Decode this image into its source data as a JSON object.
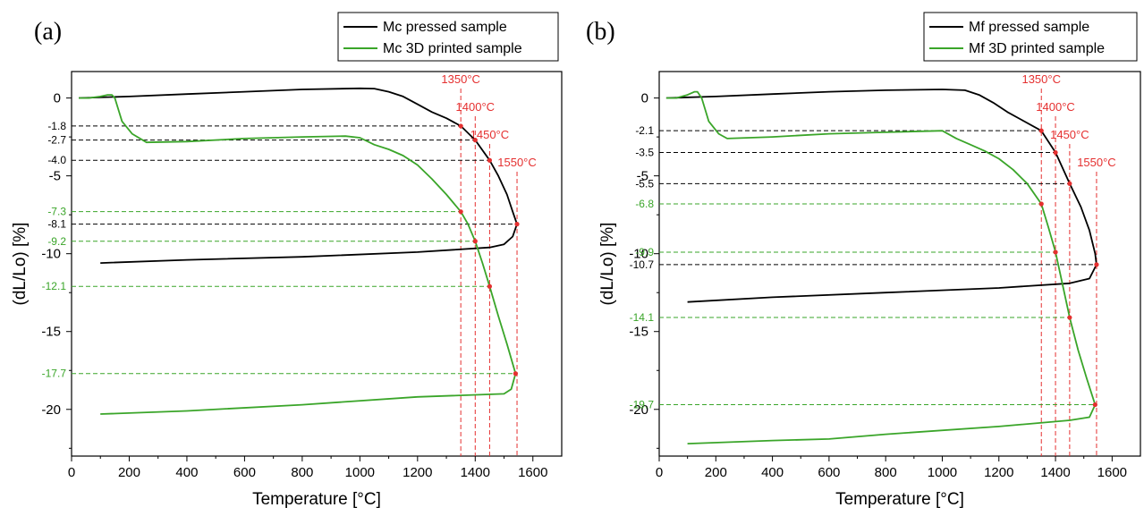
{
  "chart_data": [
    {
      "type": "line",
      "panel_label": "(a)",
      "xlabel": "Temperature [°C]",
      "ylabel": "(dL/Lo) [%]",
      "xlim": [
        0,
        1700
      ],
      "ylim": [
        -23,
        1.7
      ],
      "x_ticks": [
        0,
        200,
        400,
        600,
        800,
        1000,
        1200,
        1400,
        1600
      ],
      "y_ticks": [
        0,
        -5,
        -10,
        -15,
        -20
      ],
      "grid": false,
      "legend_position": "top-right",
      "colors": {
        "pressed": "#000000",
        "printed": "#3aa529",
        "marker": "#e53030"
      },
      "series": [
        {
          "name": "Mc pressed sample",
          "color": "#000000",
          "points": [
            [
              25,
              0
            ],
            [
              200,
              0.1
            ],
            [
              400,
              0.25
            ],
            [
              600,
              0.4
            ],
            [
              800,
              0.55
            ],
            [
              1000,
              0.62
            ],
            [
              1050,
              0.6
            ],
            [
              1100,
              0.4
            ],
            [
              1150,
              0.1
            ],
            [
              1200,
              -0.4
            ],
            [
              1250,
              -0.9
            ],
            [
              1300,
              -1.3
            ],
            [
              1350,
              -1.8
            ],
            [
              1400,
              -2.7
            ],
            [
              1450,
              -4.0
            ],
            [
              1480,
              -5.0
            ],
            [
              1510,
              -6.2
            ],
            [
              1530,
              -7.3
            ],
            [
              1545,
              -8.1
            ],
            [
              1530,
              -8.9
            ],
            [
              1500,
              -9.4
            ],
            [
              1450,
              -9.6
            ],
            [
              1200,
              -9.9
            ],
            [
              800,
              -10.2
            ],
            [
              400,
              -10.4
            ],
            [
              100,
              -10.6
            ]
          ]
        },
        {
          "name": "Mc 3D printed sample",
          "color": "#3aa529",
          "points": [
            [
              25,
              0
            ],
            [
              60,
              0
            ],
            [
              100,
              0.1
            ],
            [
              125,
              0.2
            ],
            [
              140,
              0.2
            ],
            [
              150,
              0
            ],
            [
              175,
              -1.5
            ],
            [
              210,
              -2.3
            ],
            [
              260,
              -2.85
            ],
            [
              400,
              -2.8
            ],
            [
              600,
              -2.6
            ],
            [
              800,
              -2.5
            ],
            [
              950,
              -2.45
            ],
            [
              1000,
              -2.55
            ],
            [
              1050,
              -3.0
            ],
            [
              1100,
              -3.3
            ],
            [
              1150,
              -3.7
            ],
            [
              1200,
              -4.3
            ],
            [
              1250,
              -5.2
            ],
            [
              1300,
              -6.2
            ],
            [
              1350,
              -7.3
            ],
            [
              1375,
              -8.1
            ],
            [
              1400,
              -9.2
            ],
            [
              1425,
              -10.6
            ],
            [
              1450,
              -12.1
            ],
            [
              1480,
              -14.0
            ],
            [
              1510,
              -15.8
            ],
            [
              1540,
              -17.7
            ],
            [
              1525,
              -18.7
            ],
            [
              1500,
              -19.0
            ],
            [
              1200,
              -19.2
            ],
            [
              800,
              -19.7
            ],
            [
              400,
              -20.1
            ],
            [
              100,
              -20.3
            ]
          ]
        }
      ],
      "temperature_markers": [
        {
          "label": "1350°C",
          "x": 1350
        },
        {
          "label": "1400°C",
          "x": 1400
        },
        {
          "label": "1450°C",
          "x": 1450
        },
        {
          "label": "1550°C",
          "x": 1545
        }
      ],
      "annotations": [
        {
          "label": "-1.8",
          "y": -1.8,
          "series": "Mc pressed sample",
          "x_end": 1350
        },
        {
          "label": "-2.7",
          "y": -2.7,
          "series": "Mc pressed sample",
          "x_end": 1400
        },
        {
          "label": "-4.0",
          "y": -4.0,
          "series": "Mc pressed sample",
          "x_end": 1450
        },
        {
          "label": "-8.1",
          "y": -8.1,
          "series": "Mc pressed sample",
          "x_end": 1545
        },
        {
          "label": "-7.3",
          "y": -7.3,
          "series": "Mc 3D printed sample",
          "x_end": 1350
        },
        {
          "label": "-9.2",
          "y": -9.2,
          "series": "Mc 3D printed sample",
          "x_end": 1400
        },
        {
          "label": "-12.1",
          "y": -12.1,
          "series": "Mc 3D printed sample",
          "x_end": 1450
        },
        {
          "label": "-17.7",
          "y": -17.7,
          "series": "Mc 3D printed sample",
          "x_end": 1540
        }
      ]
    },
    {
      "type": "line",
      "panel_label": "(b)",
      "xlabel": "Temperature [°C]",
      "ylabel": "(dL/Lo) [%]",
      "xlim": [
        0,
        1700
      ],
      "ylim": [
        -23,
        1.7
      ],
      "x_ticks": [
        0,
        200,
        400,
        600,
        800,
        1000,
        1200,
        1400,
        1600
      ],
      "y_ticks": [
        0,
        -5,
        -10,
        -15,
        -20
      ],
      "grid": false,
      "legend_position": "top-right",
      "colors": {
        "pressed": "#000000",
        "printed": "#3aa529",
        "marker": "#e53030"
      },
      "series": [
        {
          "name": "Mf pressed sample",
          "color": "#000000",
          "points": [
            [
              25,
              0
            ],
            [
              200,
              0.1
            ],
            [
              400,
              0.25
            ],
            [
              600,
              0.4
            ],
            [
              800,
              0.5
            ],
            [
              1000,
              0.55
            ],
            [
              1080,
              0.5
            ],
            [
              1130,
              0.2
            ],
            [
              1180,
              -0.3
            ],
            [
              1230,
              -0.9
            ],
            [
              1280,
              -1.4
            ],
            [
              1350,
              -2.1
            ],
            [
              1400,
              -3.5
            ],
            [
              1450,
              -5.5
            ],
            [
              1490,
              -7.0
            ],
            [
              1520,
              -8.5
            ],
            [
              1540,
              -10.0
            ],
            [
              1545,
              -10.7
            ],
            [
              1520,
              -11.6
            ],
            [
              1450,
              -11.9
            ],
            [
              1200,
              -12.2
            ],
            [
              800,
              -12.5
            ],
            [
              400,
              -12.8
            ],
            [
              100,
              -13.1
            ]
          ]
        },
        {
          "name": "Mf 3D printed sample",
          "color": "#3aa529",
          "points": [
            [
              25,
              0
            ],
            [
              60,
              0
            ],
            [
              100,
              0.2
            ],
            [
              125,
              0.4
            ],
            [
              135,
              0.4
            ],
            [
              150,
              0
            ],
            [
              175,
              -1.5
            ],
            [
              210,
              -2.3
            ],
            [
              240,
              -2.6
            ],
            [
              400,
              -2.5
            ],
            [
              600,
              -2.3
            ],
            [
              800,
              -2.2
            ],
            [
              1000,
              -2.1
            ],
            [
              1050,
              -2.6
            ],
            [
              1100,
              -3.0
            ],
            [
              1150,
              -3.4
            ],
            [
              1200,
              -3.9
            ],
            [
              1250,
              -4.6
            ],
            [
              1300,
              -5.5
            ],
            [
              1350,
              -6.8
            ],
            [
              1375,
              -8.3
            ],
            [
              1400,
              -9.9
            ],
            [
              1425,
              -12.0
            ],
            [
              1450,
              -14.1
            ],
            [
              1480,
              -16.2
            ],
            [
              1510,
              -18.0
            ],
            [
              1540,
              -19.7
            ],
            [
              1520,
              -20.5
            ],
            [
              1450,
              -20.7
            ],
            [
              1200,
              -21.1
            ],
            [
              800,
              -21.6
            ],
            [
              600,
              -21.9
            ],
            [
              400,
              -22.0
            ],
            [
              100,
              -22.2
            ]
          ]
        }
      ],
      "temperature_markers": [
        {
          "label": "1350°C",
          "x": 1350
        },
        {
          "label": "1400°C",
          "x": 1400
        },
        {
          "label": "1450°C",
          "x": 1450
        },
        {
          "label": "1550°C",
          "x": 1545
        }
      ],
      "annotations": [
        {
          "label": "-2.1",
          "y": -2.1,
          "series": "Mf pressed sample",
          "x_end": 1350
        },
        {
          "label": "-3.5",
          "y": -3.5,
          "series": "Mf pressed sample",
          "x_end": 1400
        },
        {
          "label": "-5.5",
          "y": -5.5,
          "series": "Mf pressed sample",
          "x_end": 1450
        },
        {
          "label": "-10.7",
          "y": -10.7,
          "series": "Mf pressed sample",
          "x_end": 1545
        },
        {
          "label": "-6.8",
          "y": -6.8,
          "series": "Mf 3D printed sample",
          "x_end": 1350
        },
        {
          "label": "-9.9",
          "y": -9.9,
          "series": "Mf 3D printed sample",
          "x_end": 1400
        },
        {
          "label": "-14.1",
          "y": -14.1,
          "series": "Mf 3D printed sample",
          "x_end": 1450
        },
        {
          "label": "-19.7",
          "y": -19.7,
          "series": "Mf 3D printed sample",
          "x_end": 1540
        }
      ]
    }
  ]
}
